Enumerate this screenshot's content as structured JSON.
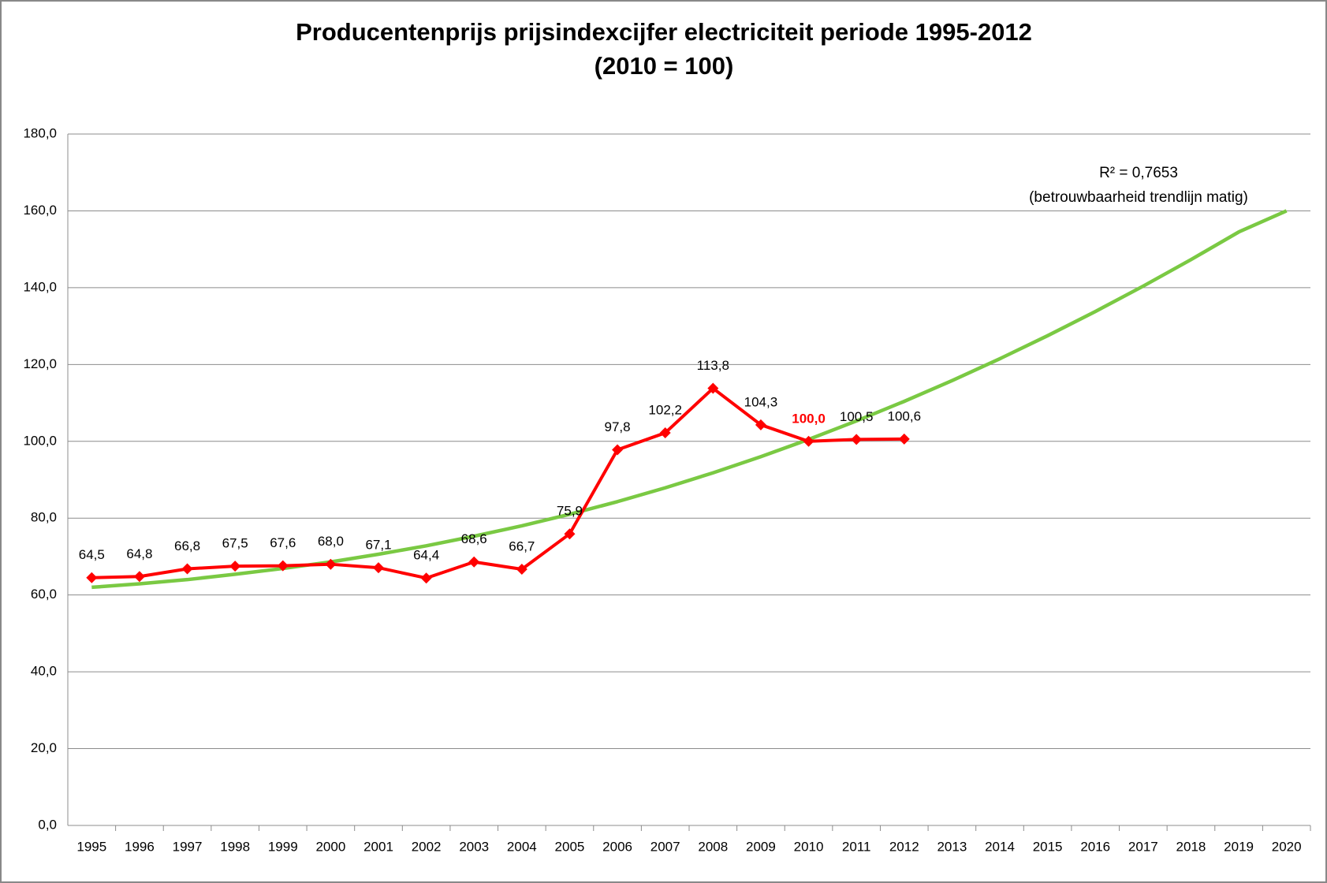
{
  "chart_data": {
    "type": "line",
    "title": "Producentenprijs prijsindexcijfer electriciteit periode 1995-2012",
    "subtitle": "(2010 = 100)",
    "categories": [
      "1995",
      "1996",
      "1997",
      "1998",
      "1999",
      "2000",
      "2001",
      "2002",
      "2003",
      "2004",
      "2005",
      "2006",
      "2007",
      "2008",
      "2009",
      "2010",
      "2011",
      "2012",
      "2013",
      "2014",
      "2015",
      "2016",
      "2017",
      "2018",
      "2019",
      "2020"
    ],
    "series": [
      {
        "color": "#ff0000",
        "values": [
          64.5,
          64.8,
          66.8,
          67.5,
          67.6,
          68.0,
          67.1,
          64.4,
          68.6,
          66.7,
          75.9,
          97.8,
          102.2,
          113.8,
          104.3,
          100.0,
          100.5,
          100.6,
          null,
          null,
          null,
          null,
          null,
          null,
          null,
          null
        ],
        "value_labels": [
          "64,5",
          "64,8",
          "66,8",
          "67,5",
          "67,6",
          "68,0",
          "67,1",
          "64,4",
          "68,6",
          "66,7",
          "75,9",
          "97,8",
          "102,2",
          "113,8",
          "104,3",
          "100,0",
          "100,5",
          "100,6",
          null,
          null,
          null,
          null,
          null,
          null,
          null,
          null
        ]
      },
      {
        "color": "#7ac943",
        "values": [
          62,
          62.9,
          64.0,
          65.4,
          66.9,
          68.6,
          70.6,
          72.8,
          75.3,
          78.0,
          81.0,
          84.3,
          87.9,
          91.8,
          96.0,
          100.5,
          105.3,
          110.4,
          115.8,
          121.5,
          127.5,
          133.8,
          140.4,
          147.3,
          154.5,
          160
        ]
      }
    ],
    "highlight": {
      "category": "2010",
      "color": "#ff0000"
    },
    "annotations": [
      "R² = 0,7653",
      "(betrouwbaarheid trendlijn matig)"
    ],
    "ylim": [
      0,
      180
    ],
    "yticks": [
      {
        "value": 0,
        "label": "0,0"
      },
      {
        "value": 20,
        "label": "20,0"
      },
      {
        "value": 40,
        "label": "40,0"
      },
      {
        "value": 60,
        "label": "60,0"
      },
      {
        "value": 80,
        "label": "80,0"
      },
      {
        "value": 100,
        "label": "100,0"
      },
      {
        "value": 120,
        "label": "120,0"
      },
      {
        "value": 140,
        "label": "140,0"
      },
      {
        "value": 160,
        "label": "160,0"
      },
      {
        "value": 180,
        "label": "180,0"
      }
    ],
    "grid": true
  }
}
